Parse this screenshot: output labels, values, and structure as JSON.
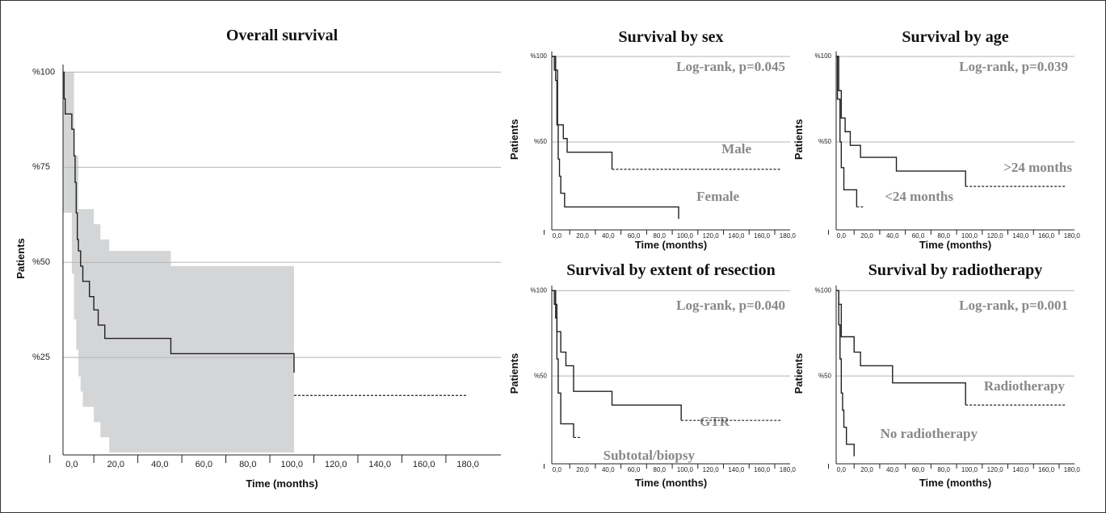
{
  "chart_data": [
    {
      "type": "line",
      "title": "Overall survival",
      "x_label": "Time (months)",
      "y_label": "Patients",
      "xlim": [
        -4,
        195
      ],
      "ylim": [
        0,
        102
      ],
      "grid": true,
      "xticks": [
        {
          "value": 0,
          "label": "0,0"
        },
        {
          "value": 20,
          "label": "20,0"
        },
        {
          "value": 40,
          "label": "40,0"
        },
        {
          "value": 60,
          "label": "60,0"
        },
        {
          "value": 80,
          "label": "80,0"
        },
        {
          "value": 100,
          "label": "100,0"
        },
        {
          "value": 120,
          "label": "120,0"
        },
        {
          "value": 140,
          "label": "140,0"
        },
        {
          "value": 160,
          "label": "160,0"
        },
        {
          "value": 180,
          "label": "180,0"
        }
      ],
      "yticks": [
        {
          "value": 100,
          "label": "%100"
        },
        {
          "value": 75,
          "label": "%75"
        },
        {
          "value": 50,
          "label": "%50"
        },
        {
          "value": 25,
          "label": "%25"
        }
      ],
      "band": {
        "color": "#d4d5d7",
        "x": [
          -4,
          0,
          1,
          2,
          3,
          4,
          5,
          10,
          13,
          17,
          45,
          101
        ],
        "upper": [
          100,
          100,
          78,
          78,
          64,
          64,
          64,
          60,
          56,
          53,
          49,
          49
        ],
        "lower": [
          63,
          47,
          35,
          27,
          20,
          16,
          12,
          8,
          4,
          0,
          0,
          0
        ]
      },
      "series": [
        {
          "color": "#222222",
          "x": [
            -4,
            -3.5,
            -3,
            0,
            1,
            1.5,
            2,
            2.5,
            3,
            4,
            5,
            8,
            10,
            12,
            15,
            45,
            101
          ],
          "values": [
            100,
            93,
            89,
            85,
            78,
            71,
            63,
            56,
            53,
            49,
            45,
            41,
            37.5,
            33.5,
            30,
            26,
            21
          ]
        },
        {
          "color": "#222222",
          "dashed": true,
          "x": [
            101,
            180
          ],
          "values": [
            15,
            15
          ]
        }
      ]
    },
    {
      "type": "line",
      "title": "Survival by sex",
      "x_label": "Time (months)",
      "y_label": "Patients",
      "annotation": "Log-rank, p=0.045",
      "xlim": [
        -4,
        182
      ],
      "ylim": [
        0,
        103
      ],
      "grid": true,
      "xticks": [
        {
          "value": 0,
          "label": "0,0"
        },
        {
          "value": 20,
          "label": "20,0"
        },
        {
          "value": 40,
          "label": "40,0"
        },
        {
          "value": 60,
          "label": "60,0"
        },
        {
          "value": 80,
          "label": "80,0"
        },
        {
          "value": 100,
          "label": "100,0"
        },
        {
          "value": 120,
          "label": "120,0"
        },
        {
          "value": 140,
          "label": "140,0"
        },
        {
          "value": 160,
          "label": "160,0"
        },
        {
          "value": 180,
          "label": "180,0"
        }
      ],
      "yticks": [
        {
          "value": 100,
          "label": "%100"
        },
        {
          "value": 50,
          "label": "%50"
        }
      ],
      "series": [
        {
          "name": "Male",
          "color": "#222222",
          "x": [
            -4,
            -2,
            0.5,
            5,
            8,
            43
          ],
          "values": [
            100,
            92,
            60,
            52,
            44,
            34
          ]
        },
        {
          "color": "#222222",
          "dashed": true,
          "x": [
            43,
            175
          ],
          "values": [
            34,
            34
          ]
        },
        {
          "name": "Female",
          "color": "#222222",
          "x": [
            -4,
            -1,
            0,
            1,
            2,
            3,
            6,
            95
          ],
          "values": [
            100,
            86,
            60,
            40,
            30,
            20,
            12,
            5
          ]
        }
      ]
    },
    {
      "type": "line",
      "title": "Survival by age",
      "x_label": "Time (months)",
      "y_label": "Patients",
      "annotation": "Log-rank, p=0.039",
      "xlim": [
        -4,
        182
      ],
      "ylim": [
        0,
        103
      ],
      "grid": true,
      "xticks": [
        {
          "value": 0,
          "label": "0,0"
        },
        {
          "value": 20,
          "label": "20,0"
        },
        {
          "value": 40,
          "label": "40,0"
        },
        {
          "value": 60,
          "label": "60,0"
        },
        {
          "value": 80,
          "label": "80,0"
        },
        {
          "value": 100,
          "label": "100,0"
        },
        {
          "value": 120,
          "label": "120,0"
        },
        {
          "value": 140,
          "label": "140,0"
        },
        {
          "value": 160,
          "label": "160,0"
        },
        {
          "value": 180,
          "label": "180,0"
        }
      ],
      "yticks": [
        {
          "value": 100,
          "label": "%100"
        },
        {
          "value": 50,
          "label": "%50"
        }
      ],
      "series": [
        {
          "name": ">24 months",
          "color": "#222222",
          "x": [
            -4,
            -2,
            0,
            3,
            7,
            15,
            43,
            97
          ],
          "values": [
            100,
            80,
            64,
            56,
            48,
            41,
            33,
            24
          ]
        },
        {
          "color": "#222222",
          "dashed": true,
          "x": [
            97,
            175
          ],
          "values": [
            24,
            24
          ]
        },
        {
          "name": "<24 months",
          "color": "#222222",
          "x": [
            -4,
            -3,
            -1,
            0,
            2,
            12
          ],
          "values": [
            100,
            75,
            50,
            35,
            22,
            12
          ]
        },
        {
          "color": "#222222",
          "dashed": true,
          "x": [
            12,
            18
          ],
          "values": [
            12,
            12
          ]
        }
      ]
    },
    {
      "type": "line",
      "title": "Survival by extent of resection",
      "x_label": "Time (months)",
      "y_label": "Patients",
      "annotation": "Log-rank, p=0.040",
      "xlim": [
        -4,
        182
      ],
      "ylim": [
        0,
        103
      ],
      "grid": true,
      "xticks": [
        {
          "value": 0,
          "label": "0,0"
        },
        {
          "value": 20,
          "label": "20,0"
        },
        {
          "value": 40,
          "label": "40,0"
        },
        {
          "value": 60,
          "label": "60,0"
        },
        {
          "value": 80,
          "label": "80,0"
        },
        {
          "value": 100,
          "label": "100,0"
        },
        {
          "value": 120,
          "label": "120,0"
        },
        {
          "value": 140,
          "label": "140,0"
        },
        {
          "value": 160,
          "label": "160,0"
        },
        {
          "value": 180,
          "label": "180,0"
        }
      ],
      "yticks": [
        {
          "value": 100,
          "label": "%100"
        },
        {
          "value": 50,
          "label": "%50"
        }
      ],
      "series": [
        {
          "name": "GTR",
          "color": "#222222",
          "x": [
            -4,
            -2,
            0,
            3,
            7,
            13,
            43,
            97
          ],
          "values": [
            100,
            92,
            76,
            64,
            56,
            41,
            33,
            24
          ]
        },
        {
          "color": "#222222",
          "dashed": true,
          "x": [
            97,
            175
          ],
          "values": [
            24,
            24
          ]
        },
        {
          "name": "Subtotal/biopsy",
          "color": "#222222",
          "x": [
            -4,
            -1,
            0,
            1,
            3,
            13
          ],
          "values": [
            100,
            84,
            60,
            40,
            22,
            14
          ]
        },
        {
          "color": "#222222",
          "dashed": true,
          "x": [
            13,
            18
          ],
          "values": [
            14,
            14
          ]
        }
      ]
    },
    {
      "type": "line",
      "title": "Survival by radiotherapy",
      "x_label": "Time (months)",
      "y_label": "Patients",
      "annotation": "Log-rank, p=0.001",
      "xlim": [
        -4,
        182
      ],
      "ylim": [
        0,
        103
      ],
      "grid": true,
      "xticks": [
        {
          "value": 0,
          "label": "0,0"
        },
        {
          "value": 20,
          "label": "20,0"
        },
        {
          "value": 40,
          "label": "40,0"
        },
        {
          "value": 60,
          "label": "60,0"
        },
        {
          "value": 80,
          "label": "80,0"
        },
        {
          "value": 100,
          "label": "100,0"
        },
        {
          "value": 120,
          "label": "120,0"
        },
        {
          "value": 140,
          "label": "140,0"
        },
        {
          "value": 160,
          "label": "160,0"
        },
        {
          "value": 180,
          "label": "180,0"
        }
      ],
      "yticks": [
        {
          "value": 100,
          "label": "%100"
        },
        {
          "value": 50,
          "label": "%50"
        }
      ],
      "series": [
        {
          "name": "Radiotherapy",
          "color": "#222222",
          "x": [
            -4,
            -2,
            0,
            10,
            15,
            40,
            97
          ],
          "values": [
            100,
            92,
            73,
            64,
            56,
            46,
            33
          ]
        },
        {
          "color": "#222222",
          "dashed": true,
          "x": [
            97,
            175
          ],
          "values": [
            33,
            33
          ]
        },
        {
          "name": "No radiotherapy",
          "color": "#222222",
          "x": [
            -4,
            -2,
            -1,
            0,
            1,
            2,
            4,
            10
          ],
          "values": [
            100,
            80,
            60,
            40,
            30,
            20,
            10,
            3
          ]
        }
      ]
    }
  ]
}
